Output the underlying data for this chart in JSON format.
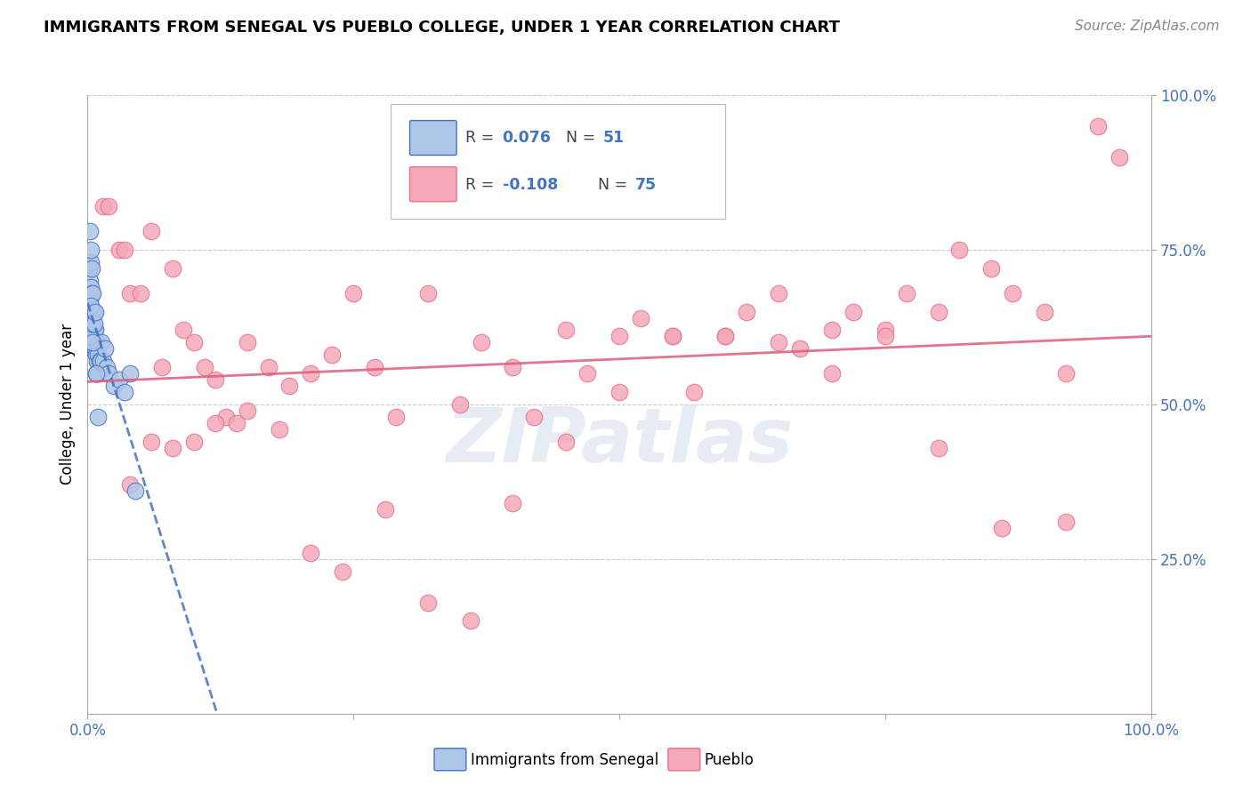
{
  "title": "IMMIGRANTS FROM SENEGAL VS PUEBLO COLLEGE, UNDER 1 YEAR CORRELATION CHART",
  "source": "Source: ZipAtlas.com",
  "ylabel": "College, Under 1 year",
  "legend_blue_r": "0.076",
  "legend_blue_n": "51",
  "legend_pink_r": "-0.108",
  "legend_pink_n": "75",
  "legend_label_blue": "Immigrants from Senegal",
  "legend_label_pink": "Pueblo",
  "blue_color": "#aec6e8",
  "pink_color": "#f4a8b8",
  "blue_edge": "#4472c4",
  "pink_edge": "#e87090",
  "trendline_blue": "#4472c4",
  "trendline_pink": "#e05c7a",
  "watermark": "ZIPatlas",
  "blue_x": [
    0.001,
    0.001,
    0.001,
    0.002,
    0.002,
    0.002,
    0.002,
    0.003,
    0.003,
    0.003,
    0.003,
    0.003,
    0.004,
    0.004,
    0.004,
    0.004,
    0.005,
    0.005,
    0.005,
    0.005,
    0.006,
    0.006,
    0.006,
    0.007,
    0.007,
    0.008,
    0.008,
    0.009,
    0.009,
    0.01,
    0.01,
    0.011,
    0.012,
    0.013,
    0.015,
    0.016,
    0.018,
    0.02,
    0.025,
    0.03,
    0.035,
    0.04,
    0.045,
    0.002,
    0.003,
    0.004,
    0.005,
    0.006,
    0.007,
    0.008,
    0.01
  ],
  "blue_y": [
    0.65,
    0.68,
    0.72,
    0.7,
    0.67,
    0.64,
    0.78,
    0.73,
    0.69,
    0.65,
    0.62,
    0.75,
    0.72,
    0.68,
    0.65,
    0.62,
    0.68,
    0.65,
    0.62,
    0.59,
    0.65,
    0.62,
    0.59,
    0.62,
    0.59,
    0.58,
    0.55,
    0.6,
    0.57,
    0.58,
    0.55,
    0.57,
    0.57,
    0.6,
    0.57,
    0.59,
    0.56,
    0.55,
    0.53,
    0.54,
    0.52,
    0.55,
    0.36,
    0.61,
    0.66,
    0.63,
    0.6,
    0.63,
    0.65,
    0.55,
    0.48
  ],
  "pink_x": [
    0.005,
    0.01,
    0.015,
    0.02,
    0.03,
    0.035,
    0.04,
    0.05,
    0.06,
    0.07,
    0.08,
    0.09,
    0.1,
    0.11,
    0.12,
    0.13,
    0.14,
    0.15,
    0.17,
    0.19,
    0.21,
    0.23,
    0.25,
    0.27,
    0.29,
    0.32,
    0.35,
    0.37,
    0.4,
    0.42,
    0.45,
    0.47,
    0.5,
    0.52,
    0.55,
    0.57,
    0.6,
    0.62,
    0.65,
    0.67,
    0.7,
    0.72,
    0.75,
    0.77,
    0.8,
    0.82,
    0.85,
    0.87,
    0.9,
    0.92,
    0.95,
    0.97,
    0.04,
    0.06,
    0.08,
    0.1,
    0.12,
    0.15,
    0.18,
    0.21,
    0.24,
    0.28,
    0.32,
    0.36,
    0.4,
    0.45,
    0.5,
    0.55,
    0.6,
    0.65,
    0.7,
    0.75,
    0.8,
    0.86,
    0.92
  ],
  "pink_y": [
    0.6,
    0.57,
    0.82,
    0.82,
    0.75,
    0.75,
    0.68,
    0.68,
    0.78,
    0.56,
    0.72,
    0.62,
    0.6,
    0.56,
    0.54,
    0.48,
    0.47,
    0.6,
    0.56,
    0.53,
    0.55,
    0.58,
    0.68,
    0.56,
    0.48,
    0.68,
    0.5,
    0.6,
    0.56,
    0.48,
    0.62,
    0.55,
    0.52,
    0.64,
    0.61,
    0.52,
    0.61,
    0.65,
    0.68,
    0.59,
    0.55,
    0.65,
    0.62,
    0.68,
    0.65,
    0.75,
    0.72,
    0.68,
    0.65,
    0.55,
    0.95,
    0.9,
    0.37,
    0.44,
    0.43,
    0.44,
    0.47,
    0.49,
    0.46,
    0.26,
    0.23,
    0.33,
    0.18,
    0.15,
    0.34,
    0.44,
    0.61,
    0.61,
    0.61,
    0.6,
    0.62,
    0.61,
    0.43,
    0.3,
    0.31
  ]
}
